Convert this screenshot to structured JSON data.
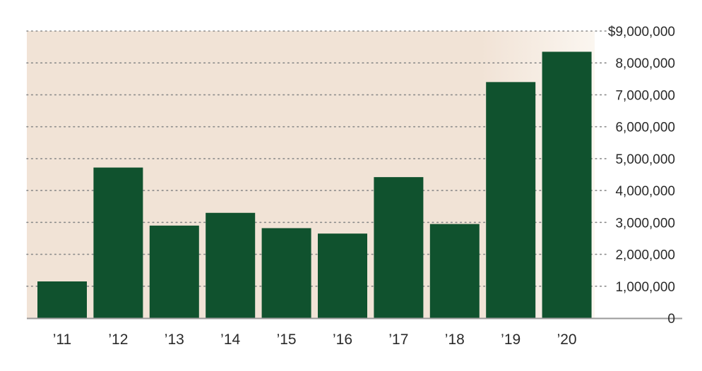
{
  "chart_data": {
    "type": "bar",
    "categories": [
      "’11",
      "’12",
      "’13",
      "’14",
      "’15",
      "’16",
      "’17",
      "’18",
      "’19",
      "’20"
    ],
    "values": [
      1150000,
      4720000,
      2900000,
      3300000,
      2820000,
      2650000,
      4420000,
      2950000,
      7400000,
      8350000
    ],
    "ylim": [
      0,
      9000000
    ],
    "y_ticks": [
      0,
      1000000,
      2000000,
      3000000,
      4000000,
      5000000,
      6000000,
      7000000,
      8000000,
      9000000
    ],
    "y_tick_labels": [
      "0",
      "1,000,000",
      "2,000,000",
      "3,000,000",
      "4,000,000",
      "5,000,000",
      "6,000,000",
      "7,000,000",
      "8,000,000",
      "$9,000,000"
    ],
    "y_axis_side": "right",
    "grid": "dotted-horizontal",
    "legend": "none",
    "colors": {
      "bar": "#10522e",
      "plot_background": "#f1e3d6",
      "plot_background_fade": "#fbf6f0",
      "gridline": "#8a8a8a",
      "baseline": "#9a9a9a",
      "text": "#2a2a2a"
    }
  }
}
